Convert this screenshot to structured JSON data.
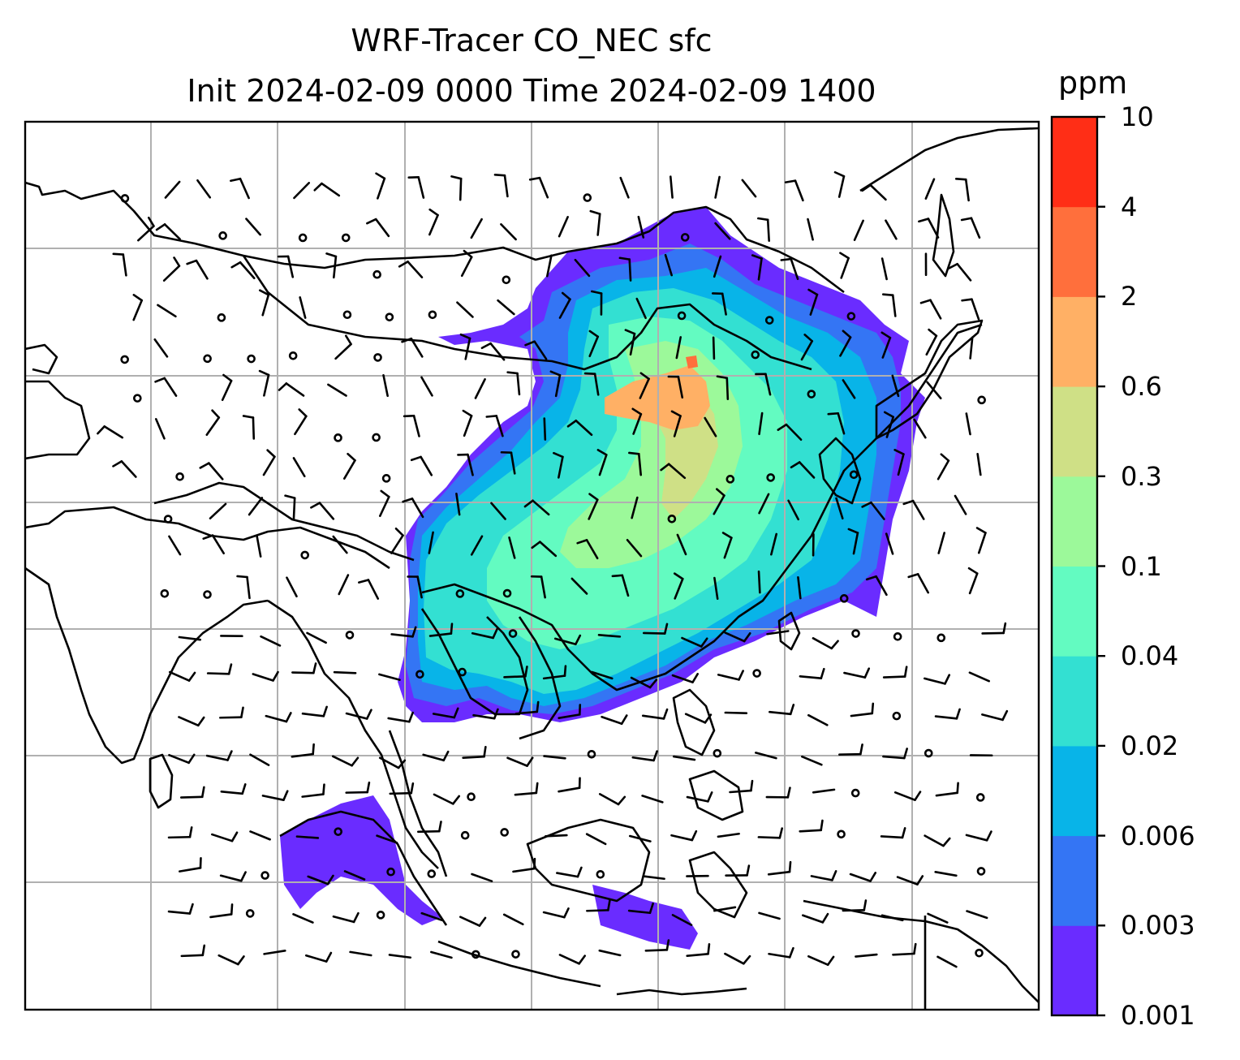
{
  "title": {
    "line1": "WRF-Tracer CO_NEC sfc",
    "line2": "Init 2024-02-09 0000 Time 2024-02-09 1400"
  },
  "colorbar": {
    "unit": "ppm",
    "levels": [
      "0.001",
      "0.003",
      "0.006",
      "0.02",
      "0.04",
      "0.1",
      "0.3",
      "0.6",
      "2",
      "4",
      "10"
    ],
    "colors": [
      "#6a2cff",
      "#3475f4",
      "#08b4e8",
      "#33e0d2",
      "#63fbc1",
      "#9cf99a",
      "#cfe086",
      "#ffb065",
      "#ff6f3c",
      "#ff2e16"
    ]
  },
  "map": {
    "field": "CO_NEC surface tracer",
    "background": "#ffffff",
    "coastline_color": "#000000",
    "gridline_color": "#b0b0b0"
  }
}
